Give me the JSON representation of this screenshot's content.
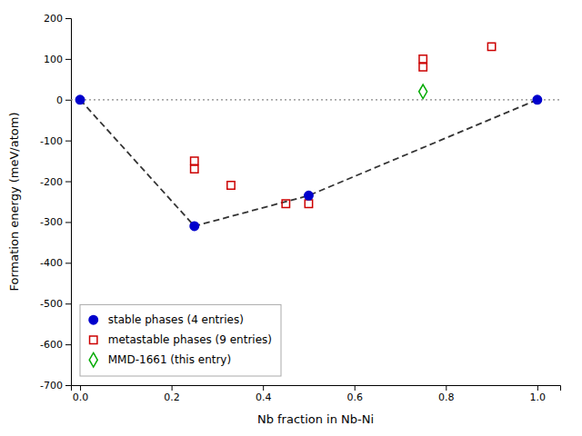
{
  "chart_data": {
    "type": "scatter",
    "xlabel": "Nb fraction in Nb-Ni",
    "ylabel": "Formation energy (meV/atom)",
    "xlim": [
      -0.02,
      1.05
    ],
    "ylim": [
      -700,
      200
    ],
    "xticks": [
      {
        "value": 0.0,
        "label": "0.0"
      },
      0.2,
      0.4,
      0.6,
      0.8,
      {
        "value": 1.0,
        "label": "1.0"
      }
    ],
    "yticks": [
      -700,
      -600,
      -500,
      -400,
      -300,
      -200,
      -100,
      0,
      100,
      200
    ],
    "grid": false,
    "legend": "lower left",
    "hline": {
      "y": 0,
      "color": "#888888",
      "line_style": "dotted"
    },
    "series": [
      {
        "name": "stable phases (4 entries)",
        "color": "#0000cc",
        "marker": "circle",
        "line_style": "dashed",
        "x": [
          0.0,
          0.25,
          0.5,
          1.0
        ],
        "values": [
          0,
          -310,
          -235,
          0
        ]
      },
      {
        "name": "metastable phases (9 entries)",
        "color": "#cc0000",
        "marker": "square-open",
        "x": [
          0.25,
          0.25,
          0.33,
          0.45,
          0.5,
          0.75,
          0.75,
          0.9
        ],
        "values": [
          -150,
          -170,
          -210,
          -255,
          -255,
          80,
          100,
          130
        ]
      },
      {
        "name": "MMD-1661 (this entry)",
        "color": "#00aa00",
        "marker": "diamond-open",
        "x": [
          0.75
        ],
        "values": [
          20
        ]
      }
    ]
  }
}
